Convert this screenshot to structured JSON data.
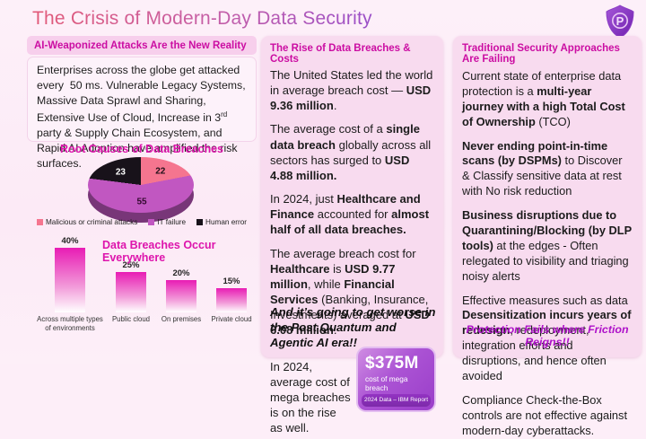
{
  "slide": {
    "title": "The Crisis of Modern-Day Data Security",
    "logo_letter": "P"
  },
  "left_column": {
    "header": "AI-Weaponized Attacks Are the New Reality",
    "intro_runs": [
      {
        "t": "Enterprises across the globe get attacked every  50 ms. Vulnerable Legacy Systems, Massive Data Sprawl and Sharing, Extensive Use of Cloud, Increase in 3"
      },
      {
        "t": "rd",
        "sup": true
      },
      {
        "t": " party & Supply Chain Ecosystem, and Rapid AI Adoption have amplified the risk surfaces."
      }
    ]
  },
  "chart_data": [
    {
      "type": "pie",
      "title": "Root Causes of Data Breaches",
      "labels": [
        "Malicious or criminal attacks",
        "IT failure",
        "Human error"
      ],
      "values": [
        22,
        55,
        23
      ],
      "colors": [
        "#f5758f",
        "#c157c1",
        "#18121a"
      ],
      "value_label_colors": [
        "#201018",
        "#32092e",
        "#ffffff"
      ],
      "legend_position": "bottom",
      "style": "3d"
    },
    {
      "type": "bar",
      "title": "Data Breaches Occur Everywhere",
      "categories": [
        "Across multiple types of environments",
        "Public cloud",
        "On premises",
        "Private cloud"
      ],
      "values": [
        40,
        25,
        20,
        15
      ],
      "value_labels": [
        "40%",
        "25%",
        "20%",
        "15%"
      ],
      "ylim": [
        0,
        40
      ],
      "bar_color_top": "#e81cb4",
      "bar_color_bottom": "#ffffff"
    }
  ],
  "middle_column": {
    "header": "The Rise of Data Breaches & Costs",
    "paragraphs": [
      [
        {
          "t": "The United States led the world in average breach cost — "
        },
        {
          "t": "USD 9.36 million",
          "b": true
        },
        {
          "t": "."
        }
      ],
      [
        {
          "t": "The average cost of a "
        },
        {
          "t": "single data breach",
          "b": true
        },
        {
          "t": " globally across all sectors has surged to "
        },
        {
          "t": "USD 4.88 million.",
          "b": true
        }
      ],
      [
        {
          "t": "In 2024, just "
        },
        {
          "t": "Healthcare and Finance",
          "b": true
        },
        {
          "t": " accounted for "
        },
        {
          "t": "almost half of all data breaches.",
          "b": true
        }
      ],
      [
        {
          "t": "The average breach cost for "
        },
        {
          "t": "Healthcare",
          "b": true
        },
        {
          "t": " is "
        },
        {
          "t": "USD 9.77 million",
          "b": true
        },
        {
          "t": ", while "
        },
        {
          "t": "Financial Services",
          "b": true
        },
        {
          "t": " (Banking, Insurance, Investments) averaged at "
        },
        {
          "t": "USD 6.08 million",
          "b": true
        },
        {
          "t": "."
        }
      ]
    ],
    "mega_paragraph": [
      {
        "t": "In 2024, average cost of mega breaches is on the rise as well."
      }
    ],
    "callout": {
      "value": "$375M",
      "caption": "cost of mega breach",
      "source": "2024 Data – IBM Report"
    },
    "footer": "And it’s going to get worse in the Post Quantum and Agentic AI era!!"
  },
  "right_column": {
    "header": "Traditional Security Approaches Are Failing",
    "paragraphs": [
      [
        {
          "t": "Current state of enterprise data protection is a "
        },
        {
          "t": "multi-year journey with a high Total Cost of Ownership",
          "b": true
        },
        {
          "t": " (TCO)"
        }
      ],
      [
        {
          "t": "Never ending point-in-time scans (by DSPMs)",
          "b": true
        },
        {
          "t": " to Discover & Classify sensitive data at rest with No risk reduction"
        }
      ],
      [
        {
          "t": "Business disruptions due to Quarantining/Blocking (by DLP tools)",
          "b": true
        },
        {
          "t": " at the edges - Often relegated to visibility and triaging noisy alerts"
        }
      ],
      [
        {
          "t": "Effective measures such as data "
        },
        {
          "t": "Desensitization incurs years of redesign",
          "b": true
        },
        {
          "t": ", redeployment, integration efforts and disruptions, and hence often avoided"
        }
      ],
      [
        {
          "t": "Compliance Check-the-Box controls are not effective against modern-day cyberattacks."
        }
      ]
    ],
    "footer": "Protection Fails where Friction Reigns!!"
  },
  "colors": {
    "accent_magenta": "#cb0da2",
    "chart_title_magenta": "#dd14ac",
    "title_gradient_start": "#e25a78",
    "title_gradient_end": "#9a4fc8",
    "page_bg": "#fdeef8",
    "card_bg": "#f8dbef",
    "callout_purple": "#9a3ec9",
    "footer_accent": "#ae12c9"
  }
}
